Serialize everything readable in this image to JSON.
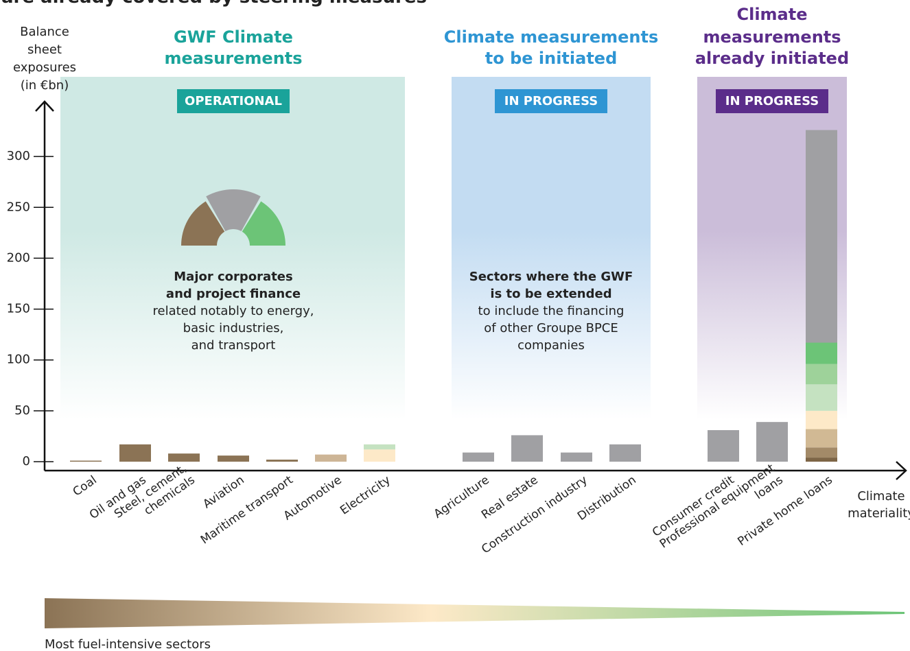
{
  "chart_data": {
    "type": "bar",
    "title": "are already covered by steering measures",
    "y_label": [
      "Balance",
      "sheet",
      "exposures",
      "(in €bn)"
    ],
    "x_label": [
      "Climate",
      "materiality"
    ],
    "gradient_label": "Most fuel-intensive sectors",
    "categories": [
      [
        "Coal"
      ],
      [
        "Oil and gas"
      ],
      [
        "Steel, cement,",
        "chemicals"
      ],
      [
        "Aviation"
      ],
      [
        "Maritime transport"
      ],
      [
        "Automotive"
      ],
      [
        "Electricity"
      ],
      [
        "Agriculture"
      ],
      [
        "Real estate"
      ],
      [
        "Construction industry"
      ],
      [
        "Distribution"
      ],
      [
        "Consumer credit"
      ],
      [
        "Professional equipment",
        "loans"
      ],
      [
        "Private home loans"
      ]
    ],
    "values": [
      [
        1
      ],
      [
        17
      ],
      [
        8
      ],
      [
        6
      ],
      [
        2
      ],
      [
        7
      ],
      [
        12,
        5
      ],
      [
        9
      ],
      [
        26
      ],
      [
        9
      ],
      [
        17
      ],
      [
        31
      ],
      [
        39
      ],
      [
        4,
        10,
        18,
        18,
        26,
        20,
        21,
        209
      ]
    ],
    "colors": [
      [
        "#8b7355"
      ],
      [
        "#8b7355"
      ],
      [
        "#8b7355"
      ],
      [
        "#8b7355"
      ],
      [
        "#8b7355"
      ],
      [
        "#cdb596"
      ],
      [
        "#fde9c8",
        "#c5e2c1"
      ],
      [
        "#a0a0a3"
      ],
      [
        "#a0a0a3"
      ],
      [
        "#a0a0a3"
      ],
      [
        "#a0a0a3"
      ],
      [
        "#a0a0a3"
      ],
      [
        "#a0a0a3"
      ],
      [
        "#7d6546",
        "#a38a68",
        "#d1b994",
        "#fde9c8",
        "#c5e2c1",
        "#9ed29a",
        "#6cc477",
        "#a0a0a3"
      ]
    ],
    "ylim": [
      0,
      350
    ],
    "yticks": [
      0,
      50,
      100,
      150,
      200,
      250,
      300
    ],
    "panels": [
      {
        "title": [
          "GWF Climate",
          "measurements"
        ],
        "badge": "OPERATIONAL",
        "color": "#1aa39a",
        "fill": "#cfe9e4",
        "bold": [
          "Major corporates",
          "and project finance"
        ],
        "text": [
          "related notably to energy,",
          "basic industries,",
          "and transport"
        ]
      },
      {
        "title": [
          "Climate measurements",
          "to be initiated"
        ],
        "badge": "IN PROGRESS",
        "color": "#2e95d3",
        "fill": "#c3dcf2",
        "bold": [
          "Sectors where the GWF",
          "is to be extended"
        ],
        "text": [
          "to include the financing",
          "of other Groupe BPCE",
          "companies"
        ]
      },
      {
        "title": [
          "Climate",
          "measurements",
          "already initiated"
        ],
        "badge": "IN PROGRESS",
        "color": "#5b2d8a",
        "fill": "#cbbdd9"
      }
    ]
  }
}
